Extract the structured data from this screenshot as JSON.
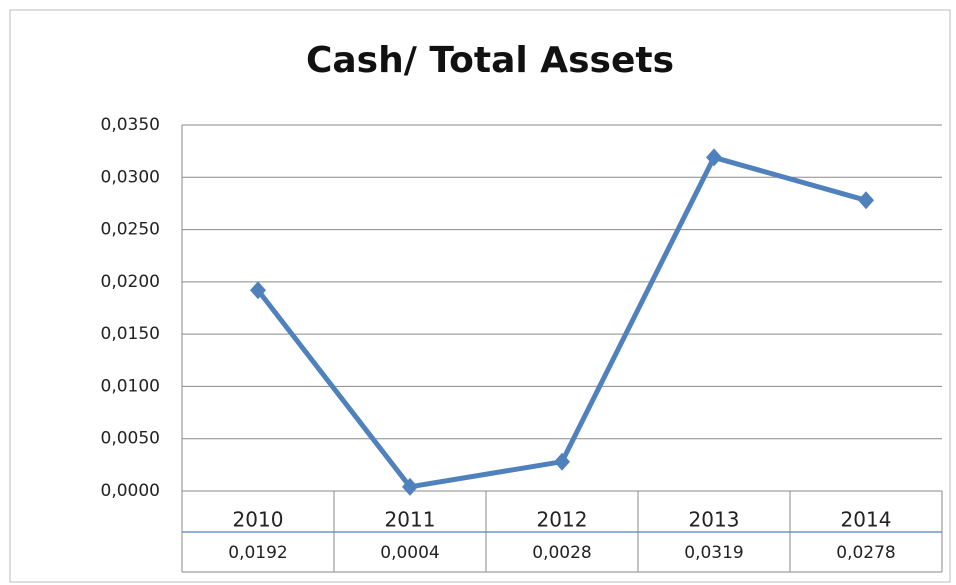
{
  "chart_data": {
    "type": "line",
    "title": "Cash/ Total Assets",
    "categories": [
      "2010",
      "2011",
      "2012",
      "2013",
      "2014"
    ],
    "series": [
      {
        "name": "Cash/ Total Assets",
        "color": "#4f81bd",
        "values": [
          0.0192,
          0.0004,
          0.0028,
          0.0319,
          0.0278
        ],
        "value_labels": [
          "0,0192",
          "0,0004",
          "0,0028",
          "0,0319",
          "0,0278"
        ]
      }
    ],
    "ylim": [
      0,
      0.035
    ],
    "yticks": [
      {
        "value": 0,
        "label": "0,0000"
      },
      {
        "value": 0.005,
        "label": "0,0050"
      },
      {
        "value": 0.01,
        "label": "0,0100"
      },
      {
        "value": 0.015,
        "label": "0,0150"
      },
      {
        "value": 0.02,
        "label": "0,0200"
      },
      {
        "value": 0.025,
        "label": "0,0250"
      },
      {
        "value": 0.03,
        "label": "0,0300"
      },
      {
        "value": 0.035,
        "label": "0,0350"
      }
    ],
    "grid": true
  }
}
